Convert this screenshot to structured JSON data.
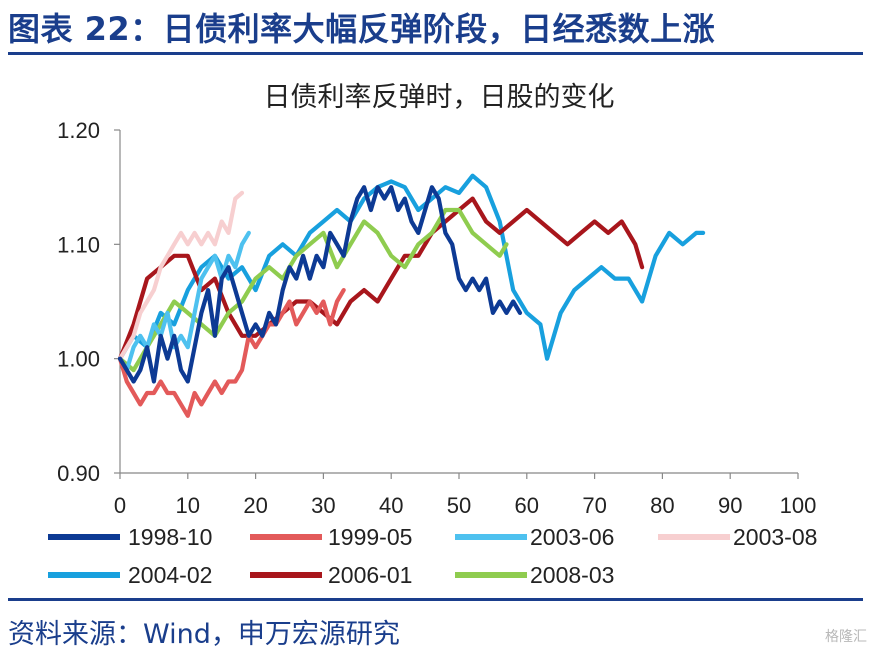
{
  "figure_title": "图表 22：日债利率大幅反弹阶段，日经悉数上涨",
  "source": "资料来源：Wind，申万宏源研究",
  "watermark": "格隆汇",
  "chart_data": {
    "type": "line",
    "title": "日债利率反弹时，日股的变化",
    "xlabel": "",
    "ylabel": "",
    "xlim": [
      0,
      100
    ],
    "ylim": [
      0.9,
      1.2
    ],
    "x_ticks": [
      0,
      10,
      20,
      30,
      40,
      50,
      60,
      70,
      80,
      90,
      100
    ],
    "y_ticks": [
      "0.90",
      "1.00",
      "1.10",
      "1.20"
    ],
    "legend_position": "bottom",
    "series": [
      {
        "name": "1998-10",
        "color": "#0d3a94",
        "x": [
          0,
          2,
          3,
          4,
          5,
          6,
          7,
          8,
          9,
          10,
          11,
          12,
          13,
          14,
          15,
          16,
          17,
          18,
          19,
          20,
          21,
          22,
          23,
          24,
          25,
          26,
          27,
          28,
          29,
          30,
          31,
          32,
          33,
          34,
          35,
          36,
          37,
          38,
          39,
          40,
          41,
          42,
          43,
          44,
          45,
          46,
          47,
          48,
          49,
          50,
          51,
          52,
          53,
          54,
          55,
          56,
          57,
          58,
          59
        ],
        "y": [
          1.0,
          0.98,
          0.99,
          1.01,
          0.98,
          1.02,
          1.0,
          1.02,
          0.99,
          0.98,
          1.01,
          1.04,
          1.06,
          1.02,
          1.07,
          1.08,
          1.06,
          1.04,
          1.02,
          1.03,
          1.02,
          1.04,
          1.03,
          1.06,
          1.08,
          1.07,
          1.09,
          1.07,
          1.09,
          1.08,
          1.11,
          1.1,
          1.09,
          1.12,
          1.14,
          1.15,
          1.13,
          1.15,
          1.14,
          1.15,
          1.13,
          1.14,
          1.12,
          1.11,
          1.13,
          1.15,
          1.14,
          1.11,
          1.1,
          1.07,
          1.06,
          1.07,
          1.06,
          1.07,
          1.04,
          1.05,
          1.04,
          1.05,
          1.04
        ]
      },
      {
        "name": "1999-05",
        "color": "#e35a5a",
        "x": [
          0,
          1,
          2,
          3,
          4,
          5,
          6,
          7,
          8,
          9,
          10,
          11,
          12,
          13,
          14,
          15,
          16,
          17,
          18,
          19,
          20,
          21,
          22,
          23,
          24,
          25,
          26,
          27,
          28,
          29,
          30,
          31,
          32,
          33
        ],
        "y": [
          1.0,
          0.98,
          0.97,
          0.96,
          0.97,
          0.97,
          0.98,
          0.97,
          0.97,
          0.96,
          0.95,
          0.97,
          0.96,
          0.97,
          0.98,
          0.97,
          0.98,
          0.98,
          0.99,
          1.02,
          1.01,
          1.02,
          1.03,
          1.03,
          1.04,
          1.05,
          1.03,
          1.04,
          1.05,
          1.04,
          1.05,
          1.03,
          1.05,
          1.06
        ]
      },
      {
        "name": "2003-06",
        "color": "#4ec1ef",
        "x": [
          0,
          1,
          2,
          3,
          4,
          5,
          6,
          7,
          8,
          9,
          10,
          11,
          12,
          13,
          14,
          15,
          16,
          17,
          18,
          19
        ],
        "y": [
          1.0,
          0.99,
          1.01,
          1.02,
          1.01,
          1.03,
          1.02,
          1.04,
          1.01,
          1.02,
          1.01,
          1.04,
          1.07,
          1.08,
          1.09,
          1.07,
          1.09,
          1.08,
          1.1,
          1.11
        ]
      },
      {
        "name": "2003-08",
        "color": "#f7cfd0",
        "x": [
          0,
          1,
          2,
          3,
          4,
          5,
          6,
          7,
          8,
          9,
          10,
          11,
          12,
          13,
          14,
          15,
          16,
          17,
          18
        ],
        "y": [
          1.0,
          1.01,
          1.02,
          1.04,
          1.05,
          1.06,
          1.08,
          1.09,
          1.1,
          1.11,
          1.1,
          1.11,
          1.1,
          1.11,
          1.1,
          1.12,
          1.11,
          1.14,
          1.145
        ]
      },
      {
        "name": "2004-02",
        "color": "#18a0de",
        "x": [
          0,
          2,
          4,
          6,
          8,
          10,
          12,
          14,
          16,
          18,
          20,
          22,
          24,
          26,
          28,
          30,
          32,
          34,
          36,
          38,
          40,
          42,
          44,
          46,
          48,
          50,
          52,
          54,
          56,
          58,
          60,
          62,
          63,
          65,
          67,
          69,
          71,
          73,
          75,
          77,
          79,
          81,
          83,
          85,
          86
        ],
        "y": [
          1.0,
          1.02,
          1.01,
          1.04,
          1.03,
          1.06,
          1.08,
          1.09,
          1.07,
          1.08,
          1.06,
          1.09,
          1.1,
          1.09,
          1.11,
          1.12,
          1.13,
          1.12,
          1.14,
          1.15,
          1.155,
          1.15,
          1.13,
          1.14,
          1.15,
          1.145,
          1.16,
          1.15,
          1.12,
          1.06,
          1.04,
          1.03,
          1.0,
          1.04,
          1.06,
          1.07,
          1.08,
          1.07,
          1.07,
          1.05,
          1.09,
          1.11,
          1.1,
          1.11,
          1.11
        ]
      },
      {
        "name": "2006-01",
        "color": "#a8161c",
        "x": [
          0,
          2,
          4,
          6,
          8,
          10,
          12,
          14,
          16,
          18,
          20,
          22,
          24,
          26,
          28,
          30,
          32,
          34,
          36,
          38,
          40,
          42,
          44,
          46,
          48,
          50,
          52,
          54,
          56,
          58,
          60,
          62,
          64,
          66,
          68,
          70,
          72,
          74,
          76,
          77
        ],
        "y": [
          1.0,
          1.03,
          1.07,
          1.08,
          1.09,
          1.09,
          1.06,
          1.07,
          1.04,
          1.02,
          1.02,
          1.03,
          1.04,
          1.05,
          1.05,
          1.04,
          1.03,
          1.05,
          1.06,
          1.05,
          1.07,
          1.09,
          1.09,
          1.11,
          1.12,
          1.13,
          1.14,
          1.12,
          1.11,
          1.12,
          1.13,
          1.12,
          1.11,
          1.1,
          1.11,
          1.12,
          1.11,
          1.12,
          1.1,
          1.08
        ]
      },
      {
        "name": "2008-03",
        "color": "#8fcc4f",
        "x": [
          0,
          2,
          4,
          6,
          8,
          10,
          12,
          14,
          16,
          18,
          20,
          22,
          24,
          26,
          28,
          30,
          32,
          34,
          36,
          38,
          40,
          42,
          44,
          46,
          48,
          50,
          52,
          54,
          56,
          57
        ],
        "y": [
          1.0,
          0.99,
          1.01,
          1.03,
          1.05,
          1.04,
          1.03,
          1.02,
          1.04,
          1.05,
          1.07,
          1.08,
          1.07,
          1.09,
          1.1,
          1.11,
          1.08,
          1.1,
          1.12,
          1.11,
          1.09,
          1.08,
          1.1,
          1.11,
          1.13,
          1.13,
          1.11,
          1.1,
          1.09,
          1.1
        ]
      }
    ]
  }
}
